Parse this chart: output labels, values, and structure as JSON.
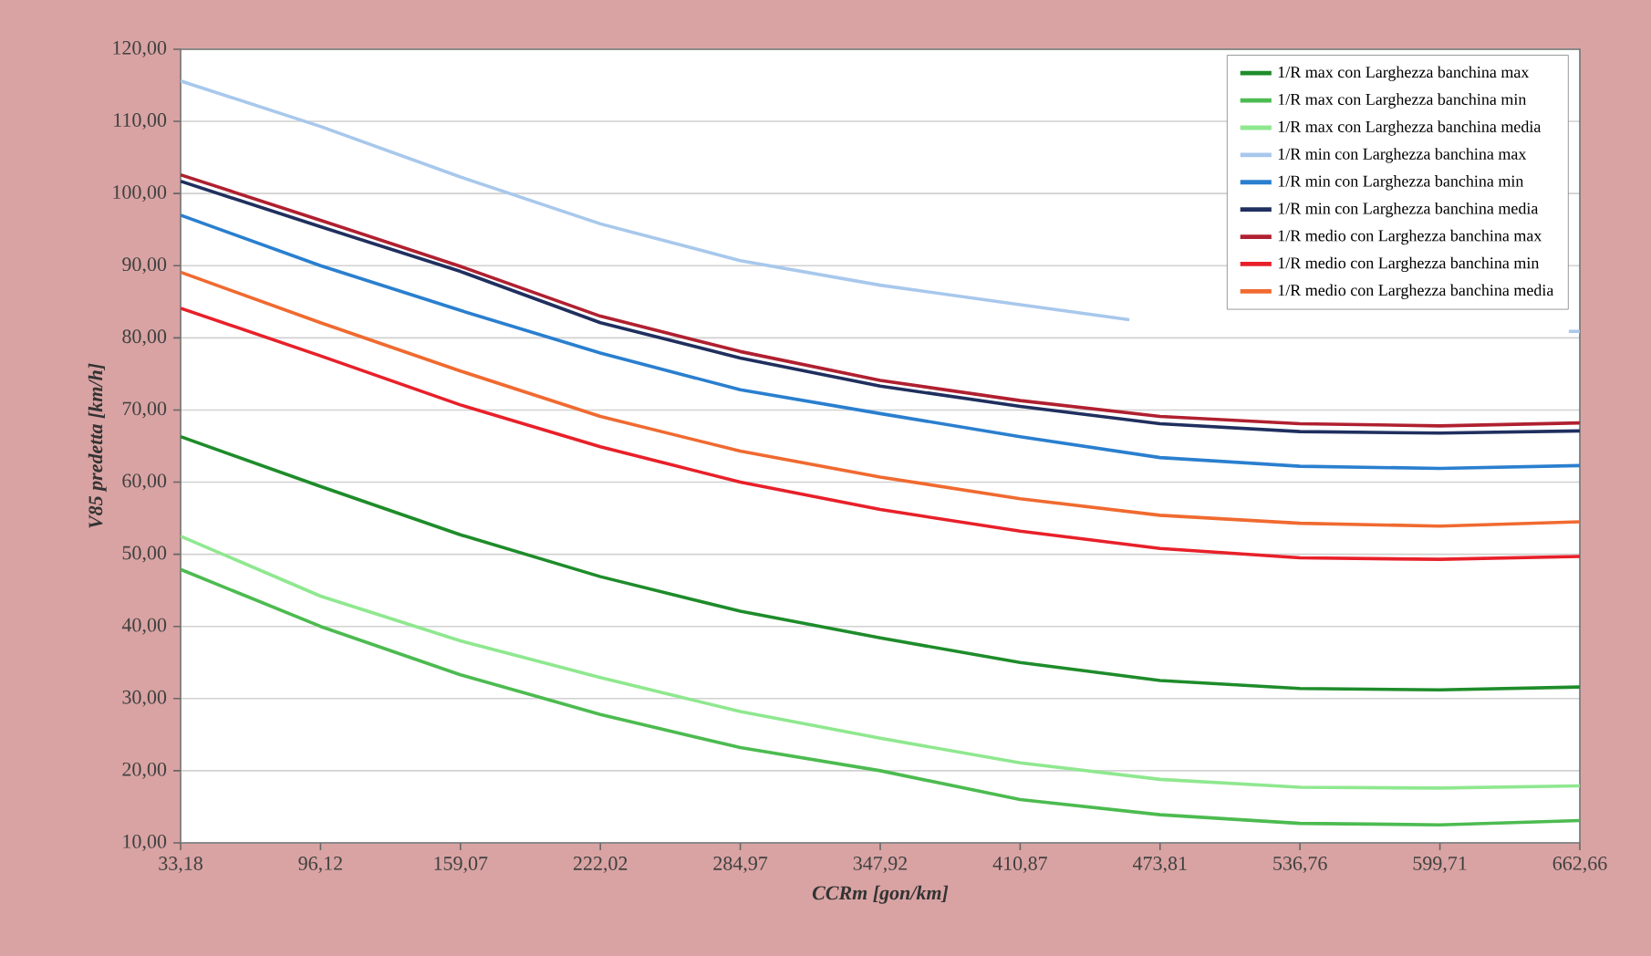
{
  "chart_data": {
    "type": "line",
    "xlabel": "CCRm [gon/km]",
    "ylabel": "V85 predetta [km/h]",
    "x": [
      33.18,
      96.12,
      159.07,
      222.02,
      284.97,
      347.92,
      410.87,
      473.81,
      536.76,
      599.71,
      662.66
    ],
    "xlim": [
      33.18,
      662.66
    ],
    "xticks": [
      {
        "value": 33.18,
        "label": "33,18"
      },
      {
        "value": 96.12,
        "label": "96,12"
      },
      {
        "value": 159.07,
        "label": "159,07"
      },
      {
        "value": 222.02,
        "label": "222,02"
      },
      {
        "value": 284.97,
        "label": "284,97"
      },
      {
        "value": 347.92,
        "label": "347,92"
      },
      {
        "value": 410.87,
        "label": "410,87"
      },
      {
        "value": 473.81,
        "label": "473,81"
      },
      {
        "value": 536.76,
        "label": "536,76"
      },
      {
        "value": 599.71,
        "label": "599,71"
      },
      {
        "value": 662.66,
        "label": "662,66"
      }
    ],
    "ylim": [
      10,
      120
    ],
    "yticks": [
      {
        "value": 10,
        "label": "10,00"
      },
      {
        "value": 20,
        "label": "20,00"
      },
      {
        "value": 30,
        "label": "30,00"
      },
      {
        "value": 40,
        "label": "40,00"
      },
      {
        "value": 50,
        "label": "50,00"
      },
      {
        "value": 60,
        "label": "60,00"
      },
      {
        "value": 70,
        "label": "70,00"
      },
      {
        "value": 80,
        "label": "80,00"
      },
      {
        "value": 90,
        "label": "90,00"
      },
      {
        "value": 100,
        "label": "100,00"
      },
      {
        "value": 110,
        "label": "110,00"
      },
      {
        "value": 120,
        "label": "120,00"
      }
    ],
    "grid": "y",
    "legend": "top right",
    "marker": "none",
    "line_style": "solid",
    "series": [
      {
        "name": "1/R max con Larghezza banchina max",
        "color": "#1e8c2a",
        "values": [
          66.3,
          59.4,
          52.7,
          46.9,
          42.1,
          38.4,
          35.0,
          32.5,
          31.4,
          31.2,
          31.6
        ]
      },
      {
        "name": "1/R max con Larghezza banchina min",
        "color": "#4cbb50",
        "values": [
          47.9,
          40.0,
          33.3,
          27.8,
          23.2,
          20.0,
          16.0,
          13.9,
          12.7,
          12.5,
          13.1
        ]
      },
      {
        "name": "1/R max con Larghezza banchina  media",
        "color": "#8fe88f",
        "values": [
          52.5,
          44.2,
          38.0,
          32.9,
          28.2,
          24.5,
          21.1,
          18.8,
          17.7,
          17.6,
          17.9
        ]
      },
      {
        "name": "1/R min con Larghezza banchina max",
        "color": "#a8c8ec",
        "x": [
          33.18,
          96.12,
          159.07,
          222.02,
          284.97,
          347.92,
          410.87,
          460,
          560,
          657.7,
          662.66
        ],
        "values": [
          115.6,
          109.3,
          102.3,
          95.8,
          90.7,
          87.3,
          84.6,
          82.5,
          null,
          80.9,
          80.9
        ]
      },
      {
        "name": "1/R min con Larghezza banchina min",
        "color": "#2a7fcf",
        "values": [
          97.0,
          90.0,
          83.8,
          77.9,
          72.8,
          69.5,
          66.3,
          63.4,
          62.2,
          61.9,
          62.3
        ]
      },
      {
        "name": "1/R min con Larghezza banchina media",
        "color": "#1f2f5f",
        "values": [
          101.7,
          95.4,
          89.2,
          82.1,
          77.2,
          73.3,
          70.5,
          68.1,
          67.0,
          66.8,
          67.1
        ]
      },
      {
        "name": "1/R medio con Larghezza banchina max",
        "color": "#b02030",
        "values": [
          102.6,
          96.3,
          89.9,
          83.0,
          78.1,
          74.1,
          71.3,
          69.1,
          68.1,
          67.8,
          68.2
        ]
      },
      {
        "name": "1/R medio con Larghezza banchina min",
        "color": "#e8202a",
        "values": [
          84.1,
          77.5,
          70.7,
          64.9,
          60.0,
          56.2,
          53.2,
          50.8,
          49.5,
          49.3,
          49.7
        ]
      },
      {
        "name": "1/R medio con Larghezza banchina media",
        "color": "#f06a30",
        "values": [
          89.1,
          82.1,
          75.4,
          69.1,
          64.3,
          60.7,
          57.7,
          55.4,
          54.3,
          53.9,
          54.5
        ]
      }
    ]
  }
}
